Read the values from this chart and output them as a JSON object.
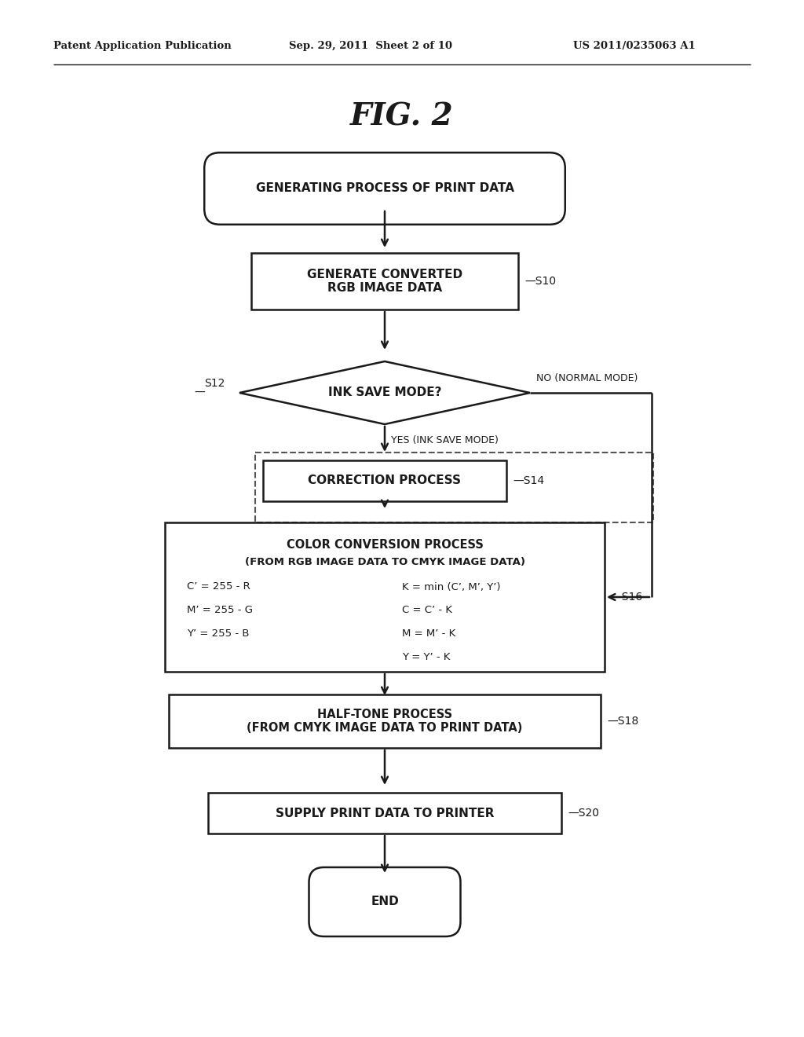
{
  "title": "FIG. 2",
  "header_left": "Patent Application Publication",
  "header_center": "Sep. 29, 2011  Sheet 2 of 10",
  "header_right": "US 2011/0235063 A1",
  "bg_color": "#ffffff",
  "text_color": "#1a1a1a",
  "fig_w": 10.24,
  "fig_h": 13.2,
  "dpi": 100
}
